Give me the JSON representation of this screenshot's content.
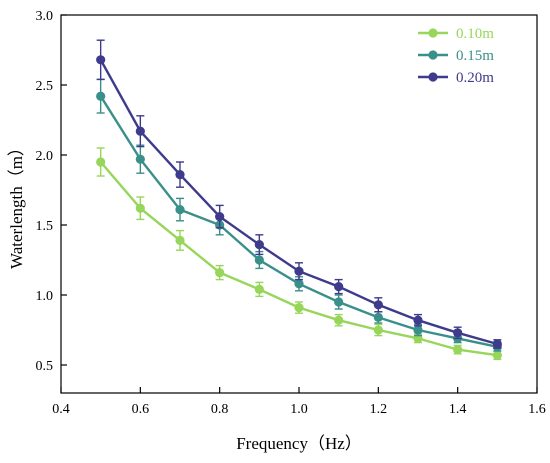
{
  "chart_data": {
    "type": "line",
    "title": "",
    "xlabel": "Frequency（Hz）",
    "ylabel": "Waterlength（m）",
    "xlim": [
      0.4,
      1.6
    ],
    "ylim": [
      0.3,
      3.0
    ],
    "xticks": [
      "0.4",
      "0.6",
      "0.8",
      "1.0",
      "1.2",
      "1.4",
      "1.6"
    ],
    "yticks": [
      "0.5",
      "1.0",
      "1.5",
      "2.0",
      "2.5",
      "3.0"
    ],
    "x": [
      0.5,
      0.6,
      0.7,
      0.8,
      0.9,
      1.0,
      1.1,
      1.2,
      1.3,
      1.4,
      1.5
    ],
    "grid": false,
    "legend": "top-right",
    "series": [
      {
        "name": "0.10m",
        "color": "#97d65a",
        "values": [
          1.95,
          1.62,
          1.39,
          1.16,
          1.04,
          0.91,
          0.82,
          0.75,
          0.69,
          0.61,
          0.57
        ],
        "errors": [
          0.1,
          0.08,
          0.07,
          0.05,
          0.05,
          0.04,
          0.04,
          0.04,
          0.03,
          0.03,
          0.03
        ]
      },
      {
        "name": "0.15m",
        "color": "#3a8f8a",
        "values": [
          2.42,
          1.97,
          1.61,
          1.5,
          1.25,
          1.08,
          0.95,
          0.84,
          0.75,
          0.69,
          0.63
        ],
        "errors": [
          0.12,
          0.1,
          0.08,
          0.07,
          0.06,
          0.05,
          0.05,
          0.04,
          0.04,
          0.03,
          0.03
        ]
      },
      {
        "name": "0.20m",
        "color": "#3e3a8c",
        "values": [
          2.68,
          2.17,
          1.86,
          1.56,
          1.36,
          1.17,
          1.06,
          0.93,
          0.82,
          0.73,
          0.65
        ],
        "errors": [
          0.14,
          0.11,
          0.09,
          0.08,
          0.07,
          0.06,
          0.05,
          0.05,
          0.04,
          0.04,
          0.03
        ]
      }
    ]
  }
}
